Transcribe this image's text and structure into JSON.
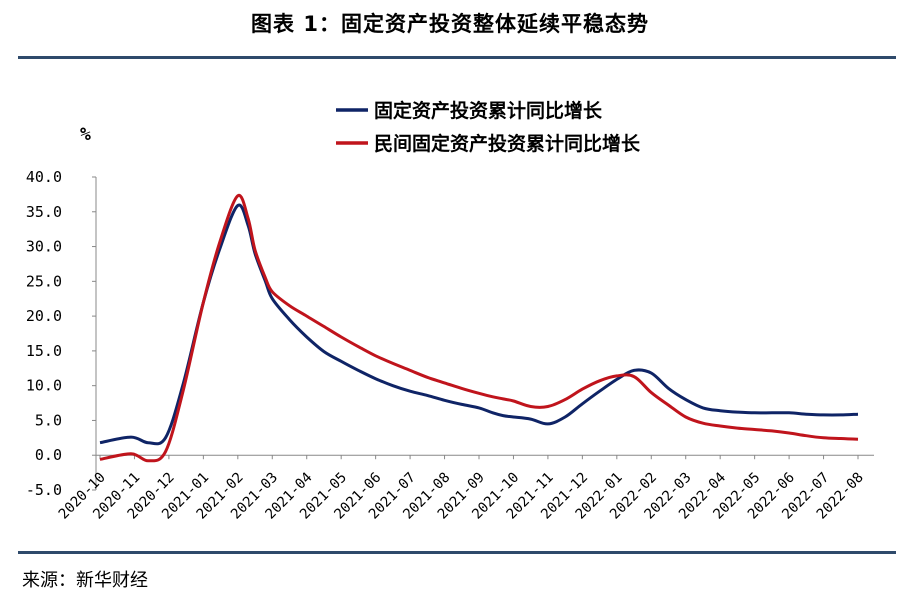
{
  "figure": {
    "title": "图表 1：固定资产投资整体延续平稳态势",
    "source": "来源：新华财经"
  },
  "colors": {
    "series1": "#0f2466",
    "series2": "#c0141c",
    "rule": "#2f4a6b",
    "axis": "#888888"
  },
  "chart_data": {
    "type": "line",
    "ylabel": "%",
    "ylim": [
      -5,
      40
    ],
    "yticks": [
      -5,
      0,
      5,
      10,
      15,
      20,
      25,
      30,
      35,
      40
    ],
    "ytick_labels": [
      "-5.0",
      "0.0",
      "5.0",
      "10.0",
      "15.0",
      "20.0",
      "25.0",
      "30.0",
      "35.0",
      "40.0"
    ],
    "categories": [
      "2020-10",
      "2020-11",
      "2020-12",
      "2021-01",
      "2021-02",
      "2021-03",
      "2021-04",
      "2021-05",
      "2021-06",
      "2021-07",
      "2021-08",
      "2021-09",
      "2021-10",
      "2021-11",
      "2021-12",
      "2022-01",
      "2022-02",
      "2022-03",
      "2022-04",
      "2022-05",
      "2022-06",
      "2022-07",
      "2022-08"
    ],
    "legend_position": "top-center",
    "series": [
      {
        "name": "固定资产投资累计同比增长",
        "x": [
          0,
          0.9,
          1.4,
          1.9,
          2.4,
          3.0,
          3.5,
          4.0,
          4.3,
          4.5,
          4.8,
          5.0,
          5.5,
          6.0,
          6.5,
          7.0,
          7.5,
          8.0,
          8.5,
          9.0,
          9.5,
          10.0,
          10.5,
          11.0,
          11.4,
          11.7,
          12.0,
          12.5,
          13.0,
          13.5,
          14.0,
          14.5,
          15.0,
          15.5,
          16.0,
          16.5,
          17.0,
          17.5,
          18.0,
          18.5,
          19.0,
          19.5,
          20.0,
          20.5,
          21.0,
          21.5,
          22.0
        ],
        "values": [
          1.8,
          2.6,
          1.8,
          2.5,
          10.0,
          22.0,
          30.0,
          35.9,
          33.0,
          29.0,
          25.0,
          22.5,
          19.5,
          17.0,
          14.9,
          13.5,
          12.2,
          11.0,
          10.0,
          9.2,
          8.6,
          7.9,
          7.3,
          6.8,
          6.1,
          5.7,
          5.5,
          5.2,
          4.5,
          5.5,
          7.4,
          9.2,
          10.9,
          12.2,
          11.8,
          9.6,
          8.0,
          6.8,
          6.4,
          6.2,
          6.1,
          6.1,
          6.1,
          5.9,
          5.8,
          5.8,
          5.9
        ]
      },
      {
        "name": "民间固定资产投资累计同比增长",
        "x": [
          0,
          0.9,
          1.4,
          1.9,
          2.4,
          3.0,
          3.5,
          4.0,
          4.3,
          4.5,
          4.8,
          5.0,
          5.5,
          6.0,
          6.5,
          7.0,
          7.5,
          8.0,
          8.5,
          9.0,
          9.5,
          10.0,
          10.5,
          11.0,
          11.4,
          11.7,
          12.0,
          12.5,
          13.0,
          13.5,
          14.0,
          14.5,
          15.0,
          15.5,
          16.0,
          16.5,
          17.0,
          17.5,
          18.0,
          18.5,
          19.0,
          19.5,
          20.0,
          20.5,
          21.0,
          21.5,
          22.0
        ],
        "values": [
          -0.6,
          0.2,
          -0.8,
          0.5,
          9.0,
          22.0,
          31.0,
          37.3,
          34.0,
          29.5,
          25.5,
          23.5,
          21.5,
          20.0,
          18.5,
          17.0,
          15.6,
          14.3,
          13.2,
          12.2,
          11.2,
          10.4,
          9.6,
          8.9,
          8.4,
          8.1,
          7.8,
          7.0,
          7.0,
          8.0,
          9.5,
          10.7,
          11.4,
          11.3,
          9.0,
          7.2,
          5.5,
          4.6,
          4.2,
          3.9,
          3.7,
          3.5,
          3.2,
          2.8,
          2.5,
          2.4,
          2.3
        ]
      }
    ]
  }
}
